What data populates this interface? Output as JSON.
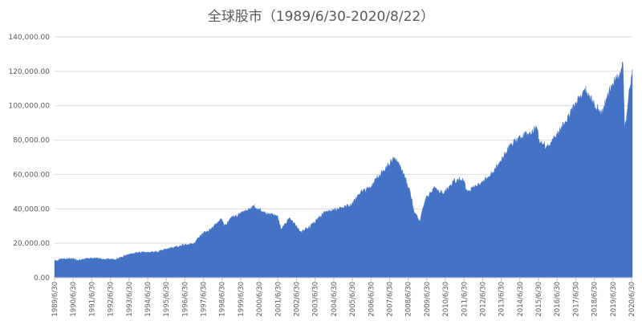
{
  "chart_data": {
    "type": "area",
    "title": "全球股市（1989/6/30-2020/8/22）",
    "xlabel": "",
    "ylabel": "",
    "ylim": [
      0,
      140000
    ],
    "y_ticks": [
      "0.00",
      "20,000.00",
      "40,000.00",
      "60,000.00",
      "80,000.00",
      "100,000.00",
      "120,000.00",
      "140,000.00"
    ],
    "x_ticks": [
      "1989/6/30",
      "1990/6/30",
      "1991/6/30",
      "1992/6/30",
      "1993/6/30",
      "1994/6/30",
      "1995/6/30",
      "1996/6/30",
      "1997/6/30",
      "1998/6/30",
      "1999/6/30",
      "2000/6/30",
      "2001/6/30",
      "2002/6/30",
      "2003/6/30",
      "2004/6/30",
      "2005/6/30",
      "2006/6/30",
      "2007/6/30",
      "2008/6/30",
      "2009/6/30",
      "2010/6/30",
      "2011/6/30",
      "2012/6/30",
      "2013/6/30",
      "2014/6/30",
      "2015/6/30",
      "2016/6/30",
      "2017/6/30",
      "2018/6/30",
      "2019/6/30",
      "2020/6/30"
    ],
    "grid": true,
    "legend": "none",
    "color": "#4472C4",
    "series": [
      {
        "x": [
          "1989-06-30",
          "1990-01-01",
          "1990-06-30",
          "1990-10-01",
          "1991-06-30",
          "1992-01-01",
          "1992-06-30",
          "1992-10-01",
          "1993-06-30",
          "1994-01-01",
          "1994-06-30",
          "1995-01-01",
          "1995-06-30",
          "1996-01-01",
          "1996-06-30",
          "1997-01-01",
          "1997-06-30",
          "1997-10-01",
          "1998-06-30",
          "1998-09-01",
          "1999-01-01",
          "1999-06-30",
          "2000-01-01",
          "2000-03-15",
          "2000-06-30",
          "2001-01-01",
          "2001-06-30",
          "2001-09-20",
          "2002-03-01",
          "2002-06-30",
          "2002-10-10",
          "2003-03-10",
          "2003-06-30",
          "2004-01-01",
          "2004-06-30",
          "2005-01-01",
          "2005-06-30",
          "2006-01-01",
          "2006-06-30",
          "2007-01-01",
          "2007-06-30",
          "2007-10-31",
          "2008-03-01",
          "2008-06-30",
          "2008-09-01",
          "2008-11-20",
          "2009-03-09",
          "2009-06-30",
          "2010-01-01",
          "2010-06-30",
          "2011-01-01",
          "2011-06-30",
          "2011-10-01",
          "2012-06-30",
          "2013-01-01",
          "2013-06-30",
          "2014-01-01",
          "2014-06-30",
          "2015-01-01",
          "2015-06-30",
          "2015-09-01",
          "2016-02-11",
          "2016-06-30",
          "2017-01-01",
          "2017-06-30",
          "2018-01-26",
          "2018-06-30",
          "2018-12-24",
          "2019-06-30",
          "2020-01-01",
          "2020-02-19",
          "2020-03-23",
          "2020-06-30",
          "2020-08-22"
        ],
        "values": [
          10000,
          11000,
          11200,
          10000,
          11500,
          11000,
          10800,
          10500,
          13500,
          14500,
          14800,
          15000,
          16500,
          18000,
          19000,
          20000,
          26000,
          27000,
          34000,
          30000,
          35000,
          37000,
          40000,
          42000,
          40000,
          37000,
          36000,
          28000,
          35000,
          30000,
          27000,
          29000,
          32000,
          38000,
          39000,
          41000,
          42000,
          50000,
          52000,
          60000,
          66000,
          70000,
          64000,
          55000,
          50000,
          38000,
          33000,
          46000,
          52000,
          49000,
          56000,
          58000,
          50000,
          55000,
          60000,
          67000,
          76000,
          81000,
          84000,
          87000,
          78000,
          76000,
          82000,
          90000,
          100000,
          110000,
          103000,
          95000,
          112000,
          118000,
          125000,
          86000,
          110000,
          121000
        ]
      }
    ]
  }
}
